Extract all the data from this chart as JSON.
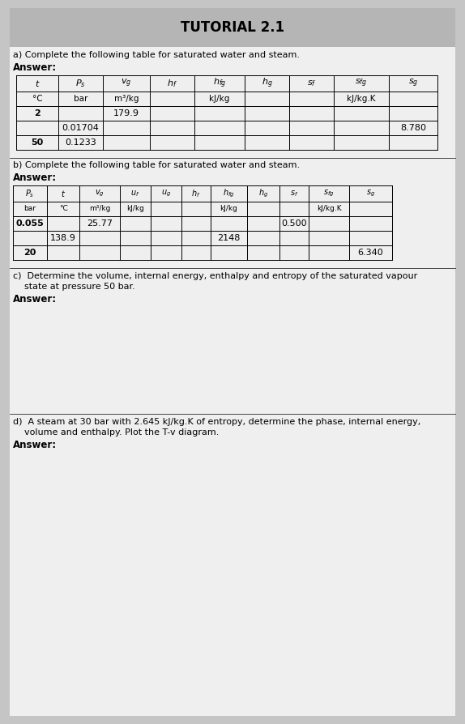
{
  "title": "TUTORIAL 2.1",
  "section_a_question": "a) Complete the following table for saturated water and steam.",
  "section_a_answer": "Answer:",
  "table_a_headers": [
    "$t$",
    "$P_s$",
    "$v_g$",
    "$h_f$",
    "$h_{fg}$",
    "$h_g$",
    "$s_f$",
    "$s_{fg}$",
    "$s_g$"
  ],
  "table_a_units": [
    "°C",
    "bar",
    "m³/kg",
    "",
    "kJ/kg",
    "",
    "",
    "kJ/kg.K",
    ""
  ],
  "table_a_rows": [
    [
      "2",
      "",
      "179.9",
      "",
      "",
      "",
      "",
      "",
      ""
    ],
    [
      "",
      "0.01704",
      "",
      "",
      "",
      "",
      "",
      "",
      "8.780"
    ],
    [
      "50",
      "0.1233",
      "",
      "",
      "",
      "",
      "",
      "",
      ""
    ]
  ],
  "table_a_bold_cells": [
    [
      0,
      0
    ],
    [
      2,
      0
    ]
  ],
  "section_b_question": "b) Complete the following table for saturated water and steam.",
  "section_b_answer": "Answer:",
  "table_b_headers": [
    "$P_s$",
    "$t$",
    "$v_g$",
    "$u_f$",
    "$u_g$",
    "$h_f$",
    "$h_{fg}$",
    "$h_g$",
    "$s_f$",
    "$s_{fg}$",
    "$s_g$"
  ],
  "table_b_units": [
    "bar",
    "°C",
    "m³/kg",
    "kJ/kg",
    "",
    "",
    "kJ/kg",
    "",
    "",
    "kJ/kg.K",
    ""
  ],
  "table_b_rows": [
    [
      "0.055",
      "",
      "25.77",
      "",
      "",
      "",
      "",
      "",
      "0.500",
      "",
      ""
    ],
    [
      "",
      "138.9",
      "",
      "",
      "",
      "",
      "2148",
      "",
      "",
      "",
      ""
    ],
    [
      "20",
      "",
      "",
      "",
      "",
      "",
      "",
      "",
      "",
      "",
      "6.340"
    ]
  ],
  "table_b_bold_cells": [
    [
      0,
      0
    ],
    [
      2,
      0
    ]
  ],
  "section_c_question_line1": "c)  Determine the volume, internal energy, enthalpy and entropy of the saturated vapour",
  "section_c_question_line2": "    state at pressure 50 bar.",
  "section_c_answer": "Answer:",
  "section_d_question_line1": "d)  A steam at 30 bar with 2.645 kJ/kg.K of entropy, determine the phase, internal energy,",
  "section_d_question_line2": "    volume and enthalpy. Plot the T-v diagram.",
  "section_d_answer": "Answer:",
  "title_bg": "#b5b5b5",
  "page_bg": "#c5c5c5",
  "content_bg": "#efefef",
  "table_row_bg": "#f5f5f5"
}
